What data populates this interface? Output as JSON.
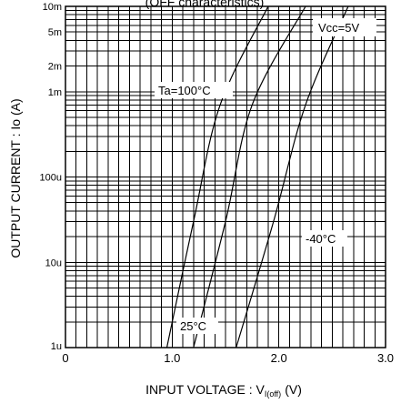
{
  "chart_data": {
    "type": "line",
    "title": "(OFF characteristics)",
    "xlabel_main": "INPUT  VOLTAGE : V",
    "xlabel_sub": "I(off)",
    "xlabel_unit": "(V)",
    "ylabel": "OUTPUT  CURRENT : Io (A)",
    "x_scale": "linear",
    "y_scale": "log",
    "xlim": [
      0,
      3.0
    ],
    "ylim": [
      1e-06,
      0.01
    ],
    "x_ticks": [
      {
        "value": 0,
        "label": "0"
      },
      {
        "value": 1.0,
        "label": "1.0"
      },
      {
        "value": 2.0,
        "label": "2.0"
      },
      {
        "value": 3.0,
        "label": "3.0"
      }
    ],
    "y_ticks": [
      {
        "value": 1e-06,
        "label": "1u"
      },
      {
        "value": 1e-05,
        "label": "10u"
      },
      {
        "value": 0.0001,
        "label": "100u"
      },
      {
        "value": 0.001,
        "label": "1m"
      },
      {
        "value": 0.002,
        "label": "2m"
      },
      {
        "value": 0.005,
        "label": "5m"
      },
      {
        "value": 0.01,
        "label": "10m"
      }
    ],
    "grid": true,
    "annotations": [
      {
        "text": "Vcc=5V",
        "position": "top-right"
      },
      {
        "text": "Ta=100°C",
        "series": "Ta=100°C"
      },
      {
        "text": "25°C",
        "series": "25°C"
      },
      {
        "text": "-40°C",
        "series": "-40°C"
      }
    ],
    "series": [
      {
        "name": "Ta=100°C",
        "points": [
          [
            0.95,
            1e-06
          ],
          [
            1.2,
            3e-05
          ],
          [
            1.45,
            0.0007
          ],
          [
            1.9,
            0.01
          ]
        ]
      },
      {
        "name": "25°C",
        "points": [
          [
            1.2,
            1e-06
          ],
          [
            1.5,
            3e-05
          ],
          [
            1.75,
            0.0007
          ],
          [
            2.25,
            0.01
          ]
        ]
      },
      {
        "name": "-40°C",
        "points": [
          [
            1.6,
            1e-06
          ],
          [
            1.95,
            3e-05
          ],
          [
            2.25,
            0.0007
          ],
          [
            2.65,
            0.01
          ]
        ]
      }
    ]
  }
}
